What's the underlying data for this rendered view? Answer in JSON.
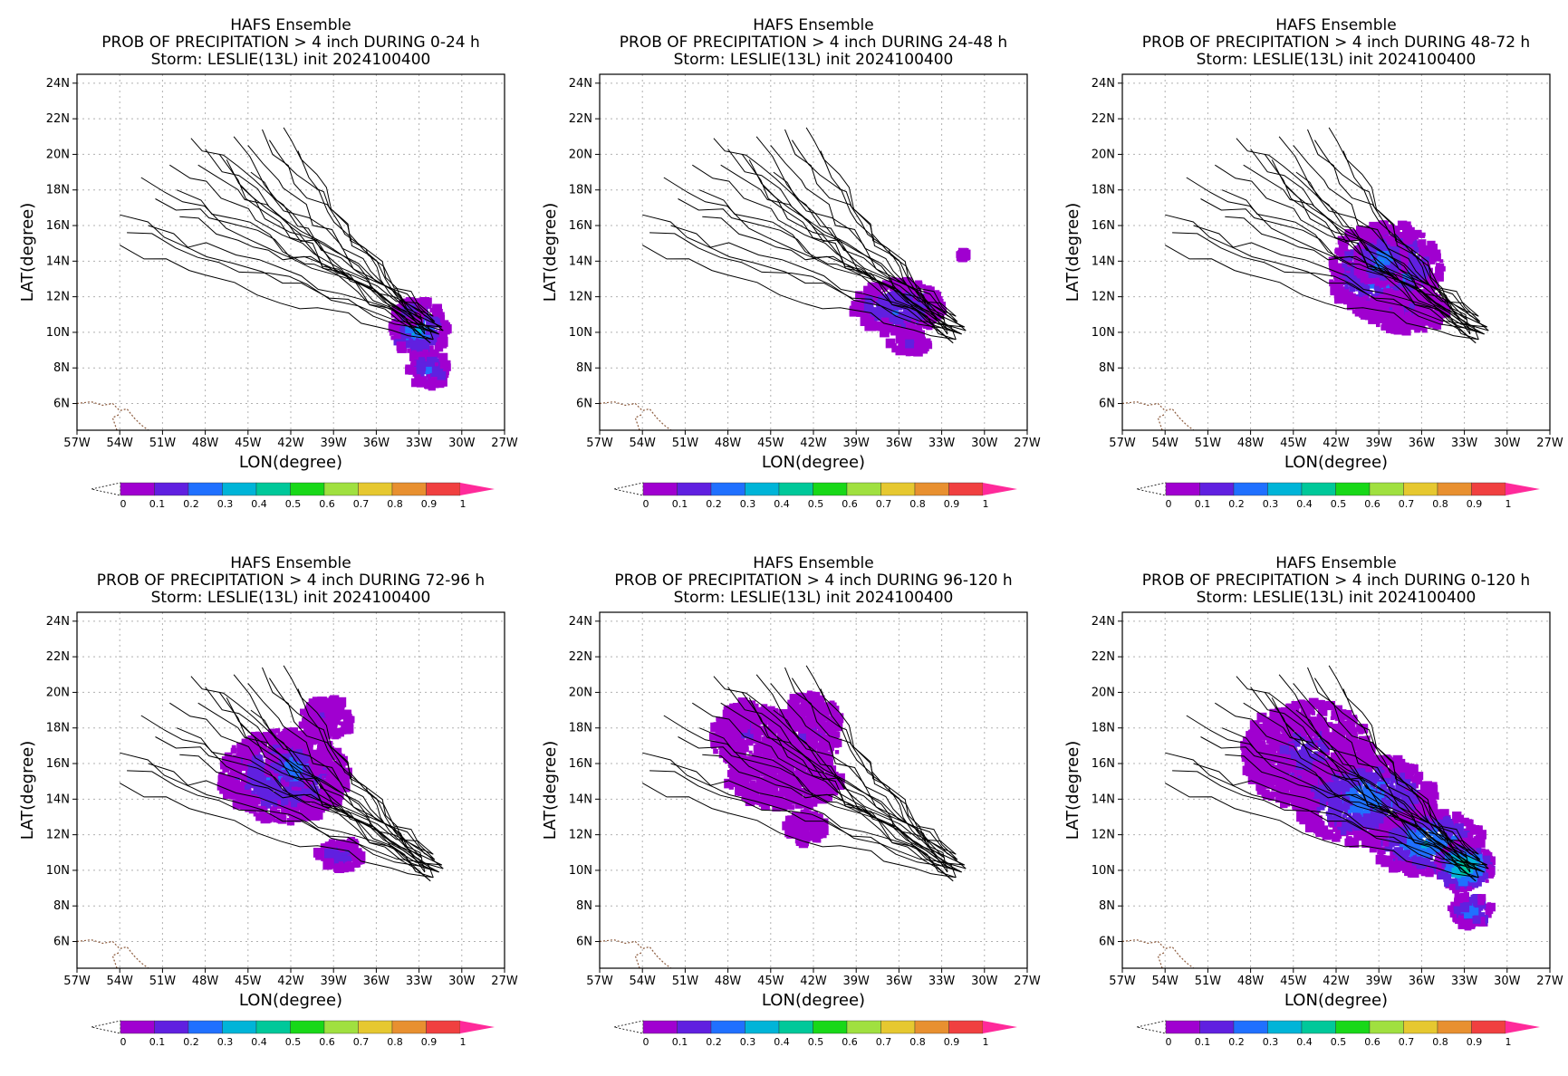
{
  "figure": {
    "title_line1": "HAFS Ensemble",
    "title_line3": "Storm: LESLIE(13L) init 2024100400"
  },
  "chart_data": [
    {
      "type": "heatmap",
      "title": "PROB OF PRECIPITATION > 4 inch DURING  0-24 h",
      "period": "0-24 h",
      "xlabel": "LON(degree)",
      "ylabel": "LAT(degree)",
      "xlim": [
        -57,
        -27
      ],
      "ylim": [
        4.5,
        24.5
      ],
      "x_ticks": [
        "57W",
        "54W",
        "51W",
        "48W",
        "45W",
        "42W",
        "39W",
        "36W",
        "33W",
        "30W",
        "27W"
      ],
      "y_ticks": [
        "6N",
        "8N",
        "10N",
        "12N",
        "14N",
        "16N",
        "18N",
        "20N",
        "22N",
        "24N"
      ],
      "grid": true,
      "blobs": [
        {
          "lon": -33.0,
          "lat": 10.2,
          "rlon": 2.0,
          "rlat": 1.6,
          "p": 0.3
        },
        {
          "lon": -32.3,
          "lat": 7.9,
          "rlon": 1.4,
          "rlat": 1.0,
          "p": 0.2
        },
        {
          "lon": -33.6,
          "lat": 11.1,
          "rlon": 1.2,
          "rlat": 0.6,
          "p": 0.15
        }
      ]
    },
    {
      "type": "heatmap",
      "title": "PROB OF PRECIPITATION > 4 inch DURING 24-48 h",
      "period": "24-48 h",
      "xlabel": "LON(degree)",
      "ylabel": "LAT(degree)",
      "xlim": [
        -57,
        -27
      ],
      "ylim": [
        4.5,
        24.5
      ],
      "x_ticks": [
        "57W",
        "54W",
        "51W",
        "48W",
        "45W",
        "42W",
        "39W",
        "36W",
        "33W",
        "30W",
        "27W"
      ],
      "y_ticks": [
        "6N",
        "8N",
        "10N",
        "12N",
        "14N",
        "16N",
        "18N",
        "20N",
        "22N",
        "24N"
      ],
      "grid": true,
      "blobs": [
        {
          "lon": -36.0,
          "lat": 11.4,
          "rlon": 3.2,
          "rlat": 1.5,
          "p": 0.2
        },
        {
          "lon": -35.2,
          "lat": 9.4,
          "rlon": 1.4,
          "rlat": 0.6,
          "p": 0.1
        },
        {
          "lon": -31.5,
          "lat": 14.3,
          "rlon": 0.3,
          "rlat": 0.2,
          "p": 0.05
        }
      ]
    },
    {
      "type": "heatmap",
      "title": "PROB OF PRECIPITATION > 4 inch DURING 48-72 h",
      "period": "48-72 h",
      "xlabel": "LON(degree)",
      "ylabel": "LAT(degree)",
      "xlim": [
        -57,
        -27
      ],
      "ylim": [
        4.5,
        24.5
      ],
      "x_ticks": [
        "57W",
        "54W",
        "51W",
        "48W",
        "45W",
        "42W",
        "39W",
        "36W",
        "33W",
        "30W",
        "27W"
      ],
      "y_ticks": [
        "6N",
        "8N",
        "10N",
        "12N",
        "14N",
        "16N",
        "18N",
        "20N",
        "22N",
        "24N"
      ],
      "grid": true,
      "blobs": [
        {
          "lon": -38.5,
          "lat": 13.4,
          "rlon": 4.0,
          "rlat": 2.8,
          "p": 0.25
        },
        {
          "lon": -38.8,
          "lat": 14.0,
          "rlon": 1.8,
          "rlat": 1.4,
          "p": 0.3
        },
        {
          "lon": -37.0,
          "lat": 11.2,
          "rlon": 2.8,
          "rlat": 1.2,
          "p": 0.1
        }
      ]
    },
    {
      "type": "heatmap",
      "title": "PROB OF PRECIPITATION > 4 inch DURING 72-96 h",
      "period": "72-96 h",
      "xlabel": "LON(degree)",
      "ylabel": "LAT(degree)",
      "xlim": [
        -57,
        -27
      ],
      "ylim": [
        4.5,
        24.5
      ],
      "x_ticks": [
        "57W",
        "54W",
        "51W",
        "48W",
        "45W",
        "42W",
        "39W",
        "36W",
        "33W",
        "30W",
        "27W"
      ],
      "y_ticks": [
        "6N",
        "8N",
        "10N",
        "12N",
        "14N",
        "16N",
        "18N",
        "20N",
        "22N",
        "24N"
      ],
      "grid": true,
      "blobs": [
        {
          "lon": -42.5,
          "lat": 15.3,
          "rlon": 4.5,
          "rlat": 2.6,
          "p": 0.2
        },
        {
          "lon": -41.8,
          "lat": 15.8,
          "rlon": 1.8,
          "rlat": 1.2,
          "p": 0.3
        },
        {
          "lon": -39.5,
          "lat": 18.5,
          "rlon": 1.8,
          "rlat": 1.2,
          "p": 0.1
        },
        {
          "lon": -38.5,
          "lat": 10.9,
          "rlon": 1.6,
          "rlat": 0.9,
          "p": 0.15
        }
      ]
    },
    {
      "type": "heatmap",
      "title": "PROB OF PRECIPITATION > 4 inch DURING 96-120 h",
      "period": "96-120 h",
      "xlabel": "LON(degree)",
      "ylabel": "LAT(degree)",
      "xlim": [
        -57,
        -27
      ],
      "ylim": [
        4.5,
        24.5
      ],
      "x_ticks": [
        "57W",
        "54W",
        "51W",
        "48W",
        "45W",
        "42W",
        "39W",
        "36W",
        "33W",
        "30W",
        "27W"
      ],
      "y_ticks": [
        "6N",
        "8N",
        "10N",
        "12N",
        "14N",
        "16N",
        "18N",
        "20N",
        "22N",
        "24N"
      ],
      "grid": true,
      "blobs": [
        {
          "lon": -46.5,
          "lat": 17.5,
          "rlon": 2.6,
          "rlat": 2.0,
          "p": 0.1
        },
        {
          "lon": -42.2,
          "lat": 17.8,
          "rlon": 2.2,
          "rlat": 2.2,
          "p": 0.1
        },
        {
          "lon": -44.0,
          "lat": 15.0,
          "rlon": 4.0,
          "rlat": 1.5,
          "p": 0.08
        },
        {
          "lon": -42.5,
          "lat": 12.4,
          "rlon": 1.4,
          "rlat": 0.9,
          "p": 0.06
        }
      ]
    },
    {
      "type": "heatmap",
      "title": "PROB OF PRECIPITATION > 4 inch DURING 0-120 h",
      "period": "0-120 h",
      "xlabel": "LON(degree)",
      "ylabel": "LAT(degree)",
      "xlim": [
        -57,
        -27
      ],
      "ylim": [
        4.5,
        24.5
      ],
      "x_ticks": [
        "57W",
        "54W",
        "51W",
        "48W",
        "45W",
        "42W",
        "39W",
        "36W",
        "33W",
        "30W",
        "27W"
      ],
      "y_ticks": [
        "6N",
        "8N",
        "10N",
        "12N",
        "14N",
        "16N",
        "18N",
        "20N",
        "22N",
        "24N"
      ],
      "grid": true,
      "blobs": [
        {
          "lon": -44.0,
          "lat": 16.5,
          "rlon": 4.5,
          "rlat": 3.0,
          "p": 0.12
        },
        {
          "lon": -40.0,
          "lat": 14.0,
          "rlon": 5.0,
          "rlat": 2.5,
          "p": 0.25
        },
        {
          "lon": -35.5,
          "lat": 11.5,
          "rlon": 4.0,
          "rlat": 1.8,
          "p": 0.3
        },
        {
          "lon": -33.0,
          "lat": 10.2,
          "rlon": 2.0,
          "rlat": 1.4,
          "p": 0.45
        },
        {
          "lon": -32.5,
          "lat": 7.8,
          "rlon": 1.5,
          "rlat": 1.0,
          "p": 0.25
        }
      ]
    }
  ],
  "tracks": {
    "start_points": [
      [
        -54.0,
        14.9
      ],
      [
        -54.0,
        16.6
      ],
      [
        -52.5,
        18.7
      ],
      [
        -50.5,
        19.4
      ],
      [
        -49.0,
        20.9
      ],
      [
        -46.0,
        21.0
      ],
      [
        -44.0,
        21.4
      ],
      [
        -42.5,
        21.5
      ],
      [
        -48.5,
        19.4
      ],
      [
        -51.5,
        17.5
      ],
      [
        -47.0,
        20.0
      ],
      [
        -45.0,
        20.5
      ],
      [
        -52.0,
        16.0
      ],
      [
        -50.0,
        18.0
      ],
      [
        -43.5,
        20.8
      ],
      [
        -46.5,
        19.7
      ],
      [
        -48.0,
        20.3
      ],
      [
        -44.8,
        19.0
      ],
      [
        -53.5,
        15.6
      ],
      [
        -49.8,
        16.5
      ],
      [
        -41.5,
        20.2
      ],
      [
        -45.5,
        18.2
      ]
    ],
    "end_points": [
      [
        -32.0,
        9.6
      ],
      [
        -31.6,
        9.9
      ],
      [
        -31.4,
        10.3
      ],
      [
        -32.4,
        10.1
      ],
      [
        -32.8,
        10.7
      ],
      [
        -32.2,
        9.4
      ],
      [
        -31.9,
        10.6
      ],
      [
        -32.6,
        9.9
      ],
      [
        -31.3,
        10.1
      ],
      [
        -32.0,
        10.9
      ]
    ]
  },
  "colorbar": {
    "ticks": [
      "0",
      "0.1",
      "0.2",
      "0.3",
      "0.4",
      "0.5",
      "0.6",
      "0.7",
      "0.8",
      "0.9",
      "1"
    ],
    "colors": [
      "#a000d0",
      "#6020e0",
      "#2070ff",
      "#00b4d8",
      "#00c89a",
      "#18d818",
      "#a0e040",
      "#e6c830",
      "#e89030",
      "#f04040"
    ],
    "extend_low_color": "#ffffff",
    "extend_high_color": "#ff2a9a"
  },
  "coastline_color": "#8b5a3c"
}
